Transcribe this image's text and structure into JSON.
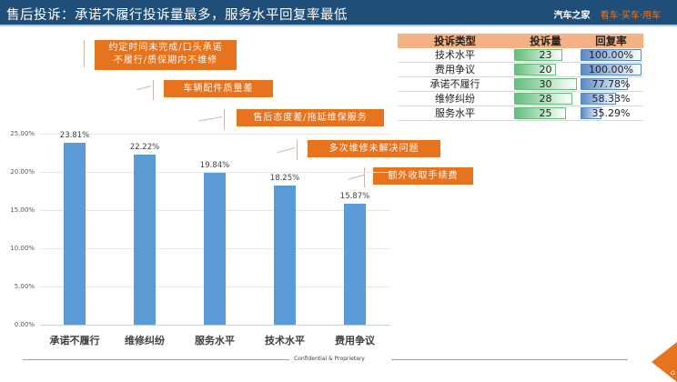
{
  "header": {
    "title": "售后投诉：承诺不履行投诉量最多，服务水平回复率最低",
    "brand_name": "汽车之家",
    "brand_slogan": "看车·买车·用车"
  },
  "table": {
    "headers": [
      "投诉类型",
      "投诉量",
      "回复率"
    ],
    "rows": [
      {
        "type": "技术水平",
        "count": "23",
        "rate": "100.00%"
      },
      {
        "type": "费用争议",
        "count": "20",
        "rate": "100.00%"
      },
      {
        "type": "承诺不履行",
        "count": "30",
        "rate": "77.78%"
      },
      {
        "type": "维修纠纷",
        "count": "28",
        "rate": "58.33%"
      },
      {
        "type": "服务水平",
        "count": "25",
        "rate": "35.29%"
      }
    ]
  },
  "callouts": [
    {
      "line1": "约定时间未完成/口头承诺",
      "line2": "不履行/质保期内不维修"
    },
    {
      "line1": "车辆配件质量差"
    },
    {
      "line1": "售后态度差/拖延维保服务"
    },
    {
      "line1": "多次维修未解决问题"
    },
    {
      "line1": "额外收取手续费"
    }
  ],
  "chart_data": {
    "type": "bar",
    "title": "",
    "xlabel": "",
    "ylabel": "",
    "categories": [
      "承诺不履行",
      "维修纠纷",
      "服务水平",
      "技术水平",
      "费用争议"
    ],
    "values": [
      23.81,
      22.22,
      19.84,
      18.25,
      15.87
    ],
    "value_labels": [
      "23.81%",
      "22.22%",
      "19.84%",
      "18.25%",
      "15.87%"
    ],
    "yticks": [
      "0.00%",
      "5.00%",
      "10.00%",
      "15.00%",
      "20.00%",
      "25.00%"
    ],
    "ylim": [
      0,
      25
    ],
    "grid": true,
    "legend": "none",
    "color": "#5b9bd5"
  },
  "footer": {
    "text": "Confidential & Proprietary",
    "corner_icon": "home-icon"
  },
  "colors": {
    "header_bg": "#1f4e79",
    "accent_orange": "#e8731f",
    "bar_blue": "#5b9bd5",
    "table_header": "#f4b183"
  }
}
